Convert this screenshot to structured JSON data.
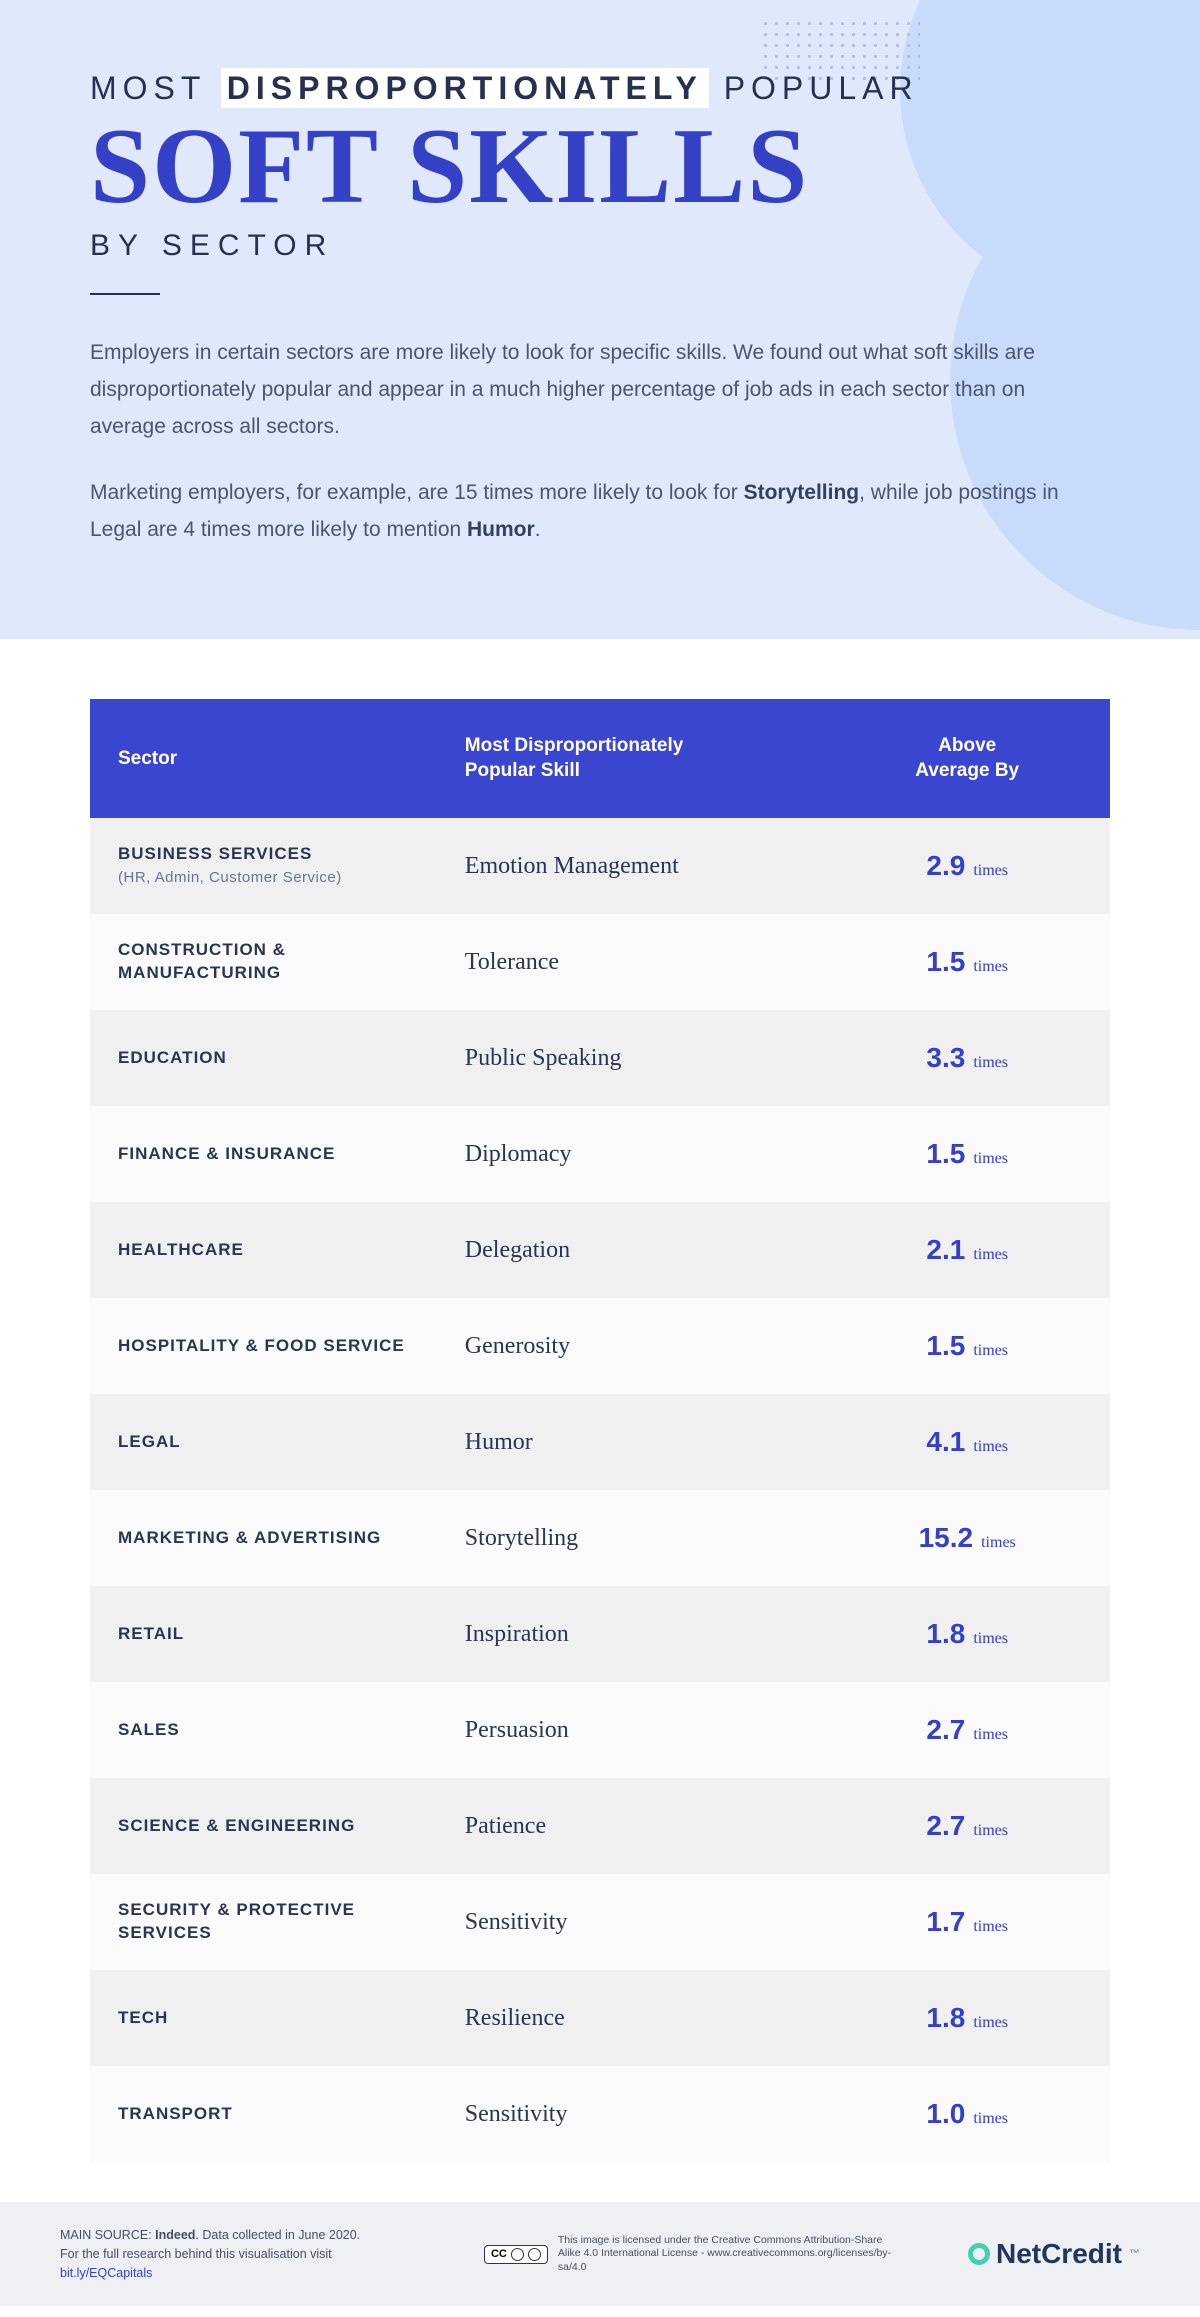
{
  "colors": {
    "hero_bg": "#dfe9fb",
    "hero_blob": "#c9dbfa",
    "accent": "#3440c6",
    "header_bg": "#3b46d0",
    "text_dark": "#26314f",
    "text_body": "#4a556f",
    "row_odd": "#f0f0f0",
    "row_even": "#fafafa",
    "footer_bg": "#eef0f4",
    "brand_ring": "#44d0b0"
  },
  "typography": {
    "title_serif_fontsize": 108,
    "title_sans_fontsize": 32,
    "subtitle_fontsize": 30,
    "intro_fontsize": 21,
    "th_fontsize": 19,
    "sector_fontsize": 17,
    "skill_fontsize": 24,
    "value_fontsize": 28
  },
  "header": {
    "line1_pre": "MOST ",
    "line1_hl": "DISPROPORTIONATELY",
    "line1_post": " POPULAR",
    "line2": "SOFT SKILLS",
    "line3": "BY SECTOR"
  },
  "intro": {
    "p1": "Employers in certain sectors are more likely to look for specific skills. We found out what soft skills are disproportionately popular and appear in a much higher percentage of job ads in each sector than on average across all sectors.",
    "p2_pre": "Marketing employers, for example, are 15 times more likely to look for ",
    "p2_b1": "Storytelling",
    "p2_mid": ", while job postings in Legal are 4 times more likely to mention ",
    "p2_b2": "Humor",
    "p2_post": "."
  },
  "table": {
    "columns": [
      "Sector",
      "Most Disproportionately Popular Skill",
      "Above Average By"
    ],
    "col_widths_pct": [
      34,
      38,
      28
    ],
    "unit_label": "times",
    "rows": [
      {
        "sector": "BUSINESS SERVICES",
        "sub": "(HR, Admin, Customer Service)",
        "skill": "Emotion Management",
        "value": "2.9"
      },
      {
        "sector": "CONSTRUCTION & MANUFACTURING",
        "sub": "",
        "skill": "Tolerance",
        "value": "1.5"
      },
      {
        "sector": "EDUCATION",
        "sub": "",
        "skill": "Public Speaking",
        "value": "3.3"
      },
      {
        "sector": "FINANCE & INSURANCE",
        "sub": "",
        "skill": "Diplomacy",
        "value": "1.5"
      },
      {
        "sector": "HEALTHCARE",
        "sub": "",
        "skill": "Delegation",
        "value": "2.1"
      },
      {
        "sector": "HOSPITALITY & FOOD SERVICE",
        "sub": "",
        "skill": "Generosity",
        "value": "1.5"
      },
      {
        "sector": "LEGAL",
        "sub": "",
        "skill": "Humor",
        "value": "4.1"
      },
      {
        "sector": "MARKETING & ADVERTISING",
        "sub": "",
        "skill": "Storytelling",
        "value": "15.2"
      },
      {
        "sector": "RETAIL",
        "sub": "",
        "skill": "Inspiration",
        "value": "1.8"
      },
      {
        "sector": "SALES",
        "sub": "",
        "skill": "Persuasion",
        "value": "2.7"
      },
      {
        "sector": "SCIENCE & ENGINEERING",
        "sub": "",
        "skill": "Patience",
        "value": "2.7"
      },
      {
        "sector": "SECURITY & PROTECTIVE SERVICES",
        "sub": "",
        "skill": "Sensitivity",
        "value": "1.7"
      },
      {
        "sector": "TECH",
        "sub": "",
        "skill": "Resilience",
        "value": "1.8"
      },
      {
        "sector": "TRANSPORT",
        "sub": "",
        "skill": "Sensitivity",
        "value": "1.0"
      }
    ]
  },
  "footer": {
    "src_pre": "MAIN SOURCE: ",
    "src_bold": "Indeed",
    "src_post": ". Data collected in June 2020.",
    "src_line2_pre": "For the full research behind this visualisation visit ",
    "src_link": "bit.ly/EQCapitals",
    "cc_text": "This image is licensed under the Creative Commons Attribution-Share Alike 4.0 International License - www.creativecommons.org/licenses/by-sa/4.0",
    "cc_badge": "CC",
    "brand": "NetCredit"
  }
}
